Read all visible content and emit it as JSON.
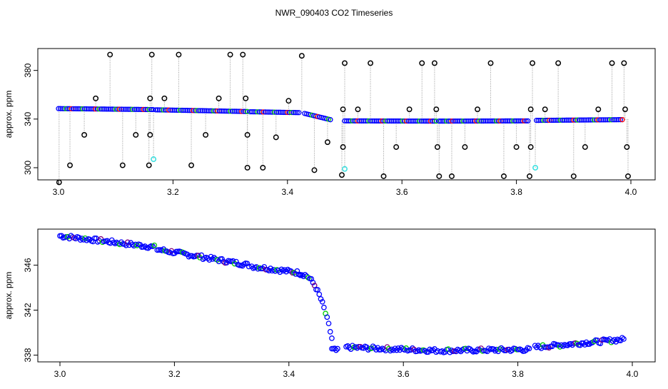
{
  "title": "NWR_090403  CO2 Timeseries",
  "chart_data": [
    {
      "type": "scatter",
      "ylabel": "approx. ppm",
      "xlim": [
        3.0,
        4.0
      ],
      "ylim": [
        290,
        398
      ],
      "xticks": [
        "3.0",
        "3.2",
        "3.4",
        "3.6",
        "3.8",
        "4.0"
      ],
      "xtick_values": [
        3.0,
        3.2,
        3.4,
        3.6,
        3.8,
        4.0
      ],
      "yticks": [
        "300",
        "340",
        "380"
      ],
      "ytick_values": [
        300,
        340,
        380
      ],
      "colors": {
        "main": "#0000ff",
        "outlier": "#000000",
        "flag": "#40e0e0",
        "green": "#00cc00",
        "red": "#ff0000",
        "drop": "#999999"
      },
      "segments": [
        {
          "x0": 3.0,
          "x1": 3.165,
          "y0": 348.6,
          "y1": 347.8
        },
        {
          "x0": 3.17,
          "x1": 3.33,
          "y0": 347.6,
          "y1": 346.2
        },
        {
          "x0": 3.335,
          "x1": 3.42,
          "y0": 346.0,
          "y1": 345.3
        },
        {
          "x0": 3.43,
          "x1": 3.475,
          "y0": 344.6,
          "y1": 339.5
        },
        {
          "x0": 3.5,
          "x1": 3.66,
          "y0": 338.5,
          "y1": 338.3
        },
        {
          "x0": 3.665,
          "x1": 3.82,
          "y0": 338.3,
          "y1": 338.5
        },
        {
          "x0": 3.835,
          "x1": 3.985,
          "y0": 338.9,
          "y1": 339.5
        }
      ],
      "outliers": [
        [
          3.001,
          288
        ],
        [
          3.02,
          302
        ],
        [
          3.045,
          327
        ],
        [
          3.065,
          357
        ],
        [
          3.09,
          393
        ],
        [
          3.112,
          302
        ],
        [
          3.135,
          327
        ],
        [
          3.158,
          302
        ],
        [
          3.16,
          327
        ],
        [
          3.16,
          357
        ],
        [
          3.163,
          393
        ],
        [
          3.185,
          357
        ],
        [
          3.21,
          393
        ],
        [
          3.232,
          302
        ],
        [
          3.257,
          327
        ],
        [
          3.28,
          357
        ],
        [
          3.3,
          393
        ],
        [
          3.322,
          393
        ],
        [
          3.327,
          357
        ],
        [
          3.33,
          327
        ],
        [
          3.33,
          300
        ],
        [
          3.357,
          300
        ],
        [
          3.38,
          325
        ],
        [
          3.402,
          355
        ],
        [
          3.425,
          392
        ],
        [
          3.447,
          298
        ],
        [
          3.47,
          321
        ],
        [
          3.495,
          294
        ],
        [
          3.497,
          317
        ],
        [
          3.497,
          348
        ],
        [
          3.5,
          386
        ],
        [
          3.523,
          348
        ],
        [
          3.545,
          386
        ],
        [
          3.568,
          293
        ],
        [
          3.59,
          317
        ],
        [
          3.613,
          348
        ],
        [
          3.635,
          386
        ],
        [
          3.657,
          386
        ],
        [
          3.66,
          348
        ],
        [
          3.662,
          317
        ],
        [
          3.665,
          293
        ],
        [
          3.687,
          293
        ],
        [
          3.71,
          317
        ],
        [
          3.732,
          348
        ],
        [
          3.755,
          386
        ],
        [
          3.778,
          293
        ],
        [
          3.8,
          317
        ],
        [
          3.823,
          293
        ],
        [
          3.825,
          317
        ],
        [
          3.825,
          348
        ],
        [
          3.828,
          386
        ],
        [
          3.85,
          348
        ],
        [
          3.873,
          386
        ],
        [
          3.9,
          293
        ],
        [
          3.92,
          317
        ],
        [
          3.943,
          348
        ],
        [
          3.967,
          386
        ],
        [
          3.988,
          386
        ],
        [
          3.99,
          348
        ],
        [
          3.993,
          317
        ],
        [
          3.995,
          293
        ]
      ],
      "flagged": [
        [
          3.166,
          307
        ],
        [
          3.5,
          299
        ],
        [
          3.833,
          300
        ]
      ]
    },
    {
      "type": "scatter",
      "ylabel": "approx. ppm",
      "xlim": [
        3.0,
        4.0
      ],
      "ylim": [
        337.4,
        349.2
      ],
      "xticks": [
        "3.0",
        "3.2",
        "3.4",
        "3.6",
        "3.8",
        "4.0"
      ],
      "xtick_values": [
        3.0,
        3.2,
        3.4,
        3.6,
        3.8,
        4.0
      ],
      "yticks": [
        "338",
        "342",
        "346"
      ],
      "ytick_values": [
        338,
        342,
        346
      ],
      "segments": [
        {
          "x0": 3.0,
          "x1": 3.165,
          "y0": 348.6,
          "y1": 347.6
        },
        {
          "x0": 3.17,
          "x1": 3.33,
          "y0": 347.4,
          "y1": 346.0
        },
        {
          "x0": 3.335,
          "x1": 3.42,
          "y0": 345.9,
          "y1": 345.3
        },
        {
          "x0": 3.42,
          "x1": 3.475,
          "y0": 345.2,
          "y1": 339.5
        },
        {
          "x0": 3.475,
          "x1": 3.485,
          "y0": 338.5,
          "y1": 338.4
        },
        {
          "x0": 3.5,
          "x1": 3.66,
          "y0": 338.7,
          "y1": 338.4
        },
        {
          "x0": 3.665,
          "x1": 3.82,
          "y0": 338.4,
          "y1": 338.5
        },
        {
          "x0": 3.83,
          "x1": 3.985,
          "y0": 338.7,
          "y1": 339.4
        }
      ]
    }
  ]
}
